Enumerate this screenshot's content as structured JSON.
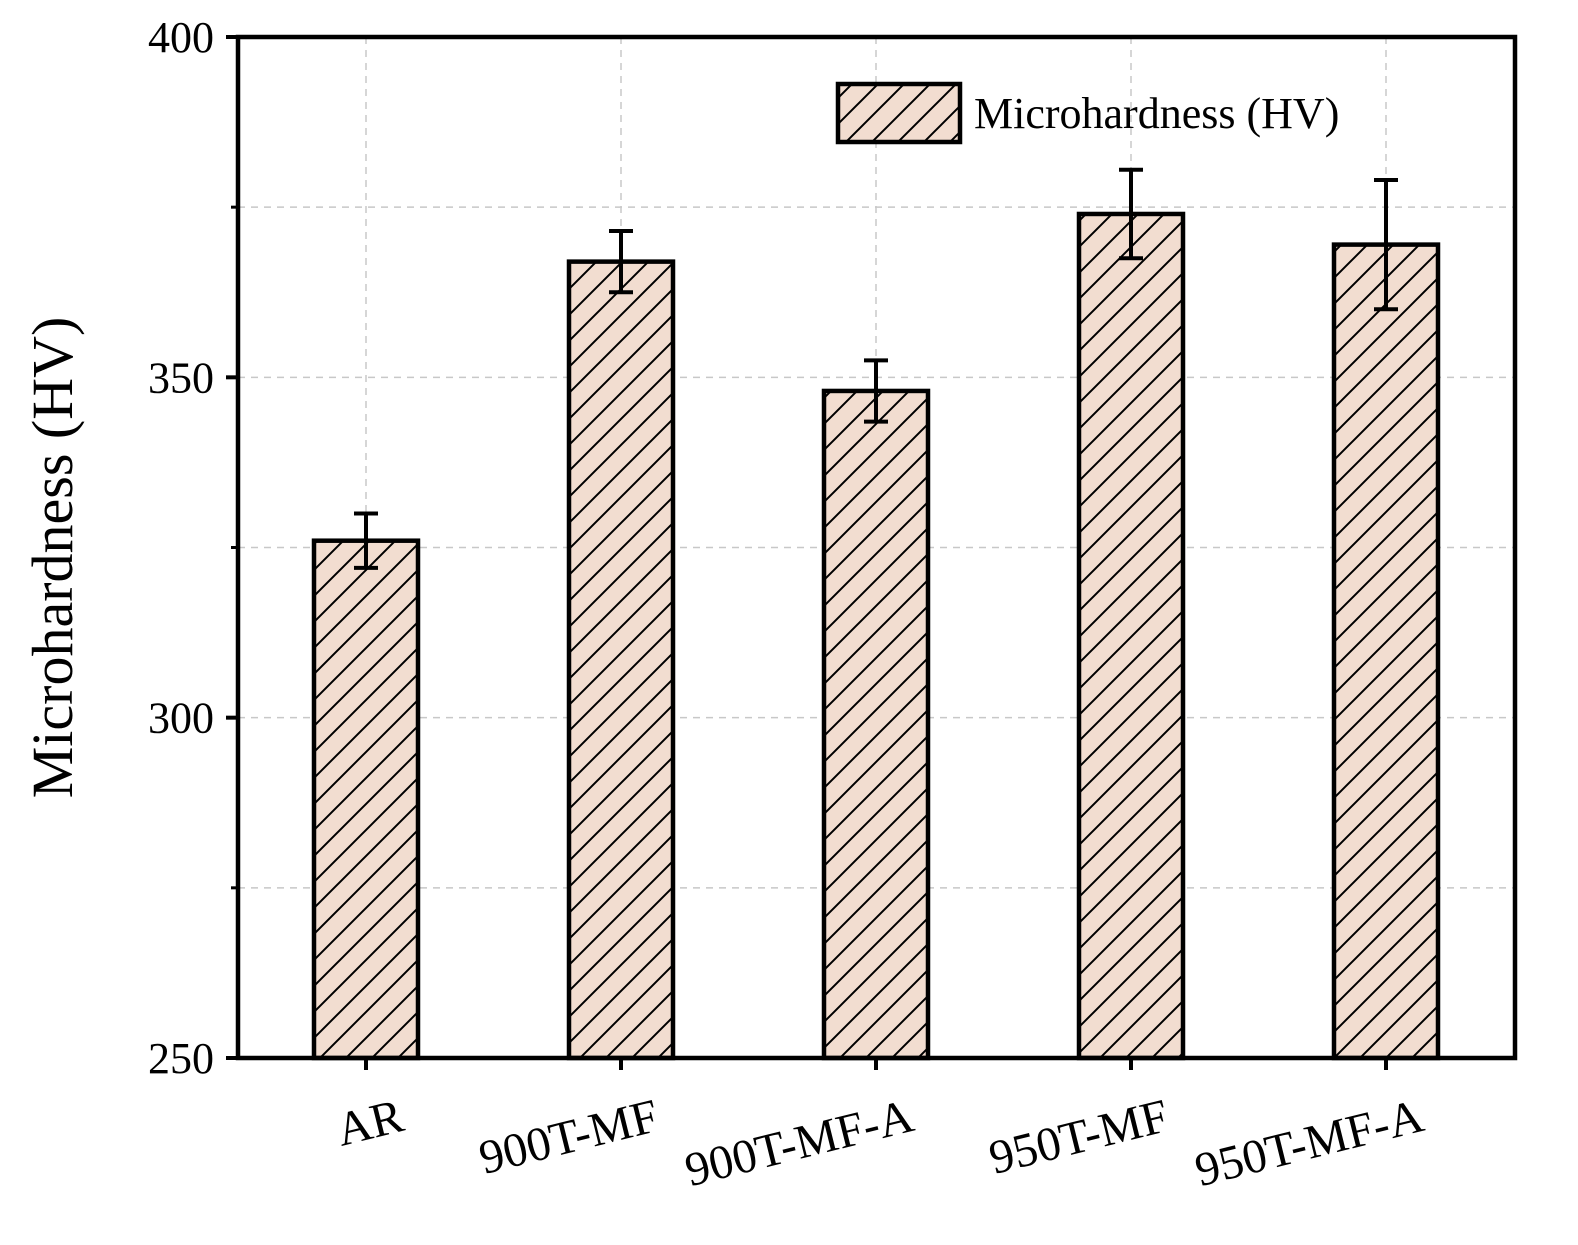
{
  "chart_data": {
    "type": "bar",
    "title": "",
    "xlabel": "",
    "ylabel": "Microhardness (HV)",
    "ylim": [
      250,
      400
    ],
    "yticks": [
      250,
      300,
      350,
      400
    ],
    "minor_grid_values": [
      275,
      325,
      375
    ],
    "grid": true,
    "legend": {
      "position": "top-right",
      "entries": [
        "Microhardness (HV)"
      ]
    },
    "categories": [
      "AR",
      "900T-MF",
      "900T-MF-A",
      "950T-MF",
      "950T-MF-A"
    ],
    "series": [
      {
        "name": "Microhardness (HV)",
        "values": [
          326,
          367,
          348,
          374,
          369.5
        ],
        "errors": [
          4,
          4.5,
          4.5,
          6.5,
          9.5
        ]
      }
    ],
    "colors": {
      "bar_fill": "#f2ddd0",
      "bar_stroke": "#000000",
      "hatch": "#000000",
      "grid": "#c8c8c8",
      "axis": "#000000"
    }
  }
}
